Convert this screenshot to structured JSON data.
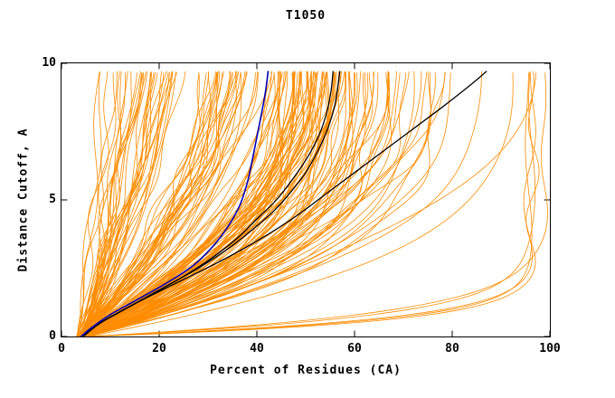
{
  "chart_data": {
    "type": "line",
    "title": "T1050",
    "xlabel": "Percent of Residues (CA)",
    "ylabel": "Distance Cutoff, A",
    "xlim": [
      0,
      100
    ],
    "ylim": [
      0,
      10
    ],
    "xticks": [
      0,
      20,
      40,
      60,
      80,
      100
    ],
    "yticks": [
      0,
      5,
      10
    ],
    "grid": false,
    "frame_color": "#000000",
    "ensemble": {
      "name": "server-model-curves",
      "color": "#ff8c00",
      "line_width": 0.8,
      "count": 175,
      "seed": 42,
      "x_start_range": [
        3,
        5.5
      ],
      "y_top": 9.7,
      "wiggle_amp": 1.6,
      "groups": [
        {
          "weight": 0.18,
          "xtop_mean": 20,
          "xtop_sd": 7,
          "q_range": [
            0.9,
            1.8
          ]
        },
        {
          "weight": 0.22,
          "xtop_mean": 38,
          "xtop_sd": 7,
          "q_range": [
            1.2,
            2.5
          ]
        },
        {
          "weight": 0.34,
          "xtop_mean": 52,
          "xtop_sd": 5,
          "q_range": [
            1.8,
            3.5
          ]
        },
        {
          "weight": 0.18,
          "xtop_mean": 66,
          "xtop_sd": 8,
          "q_range": [
            2.0,
            4.0
          ]
        },
        {
          "weight": 0.05,
          "xtop_mean": 82,
          "xtop_sd": 5,
          "q_range": [
            2.5,
            4.5
          ]
        },
        {
          "weight": 0.03,
          "xtop_mean": 96.5,
          "xtop_sd": 1.5,
          "q_range": [
            8,
            20
          ]
        }
      ]
    },
    "highlight_series": [
      {
        "name": "model-black-1",
        "color": "#000000",
        "width": 1.3,
        "points": [
          [
            4,
            0
          ],
          [
            7,
            0.4
          ],
          [
            12,
            0.9
          ],
          [
            18,
            1.5
          ],
          [
            25,
            2.2
          ],
          [
            31,
            2.9
          ],
          [
            36,
            3.6
          ],
          [
            40,
            4.3
          ],
          [
            44,
            5.0
          ],
          [
            47.5,
            5.8
          ],
          [
            50.5,
            6.6
          ],
          [
            52.8,
            7.4
          ],
          [
            54.3,
            8.2
          ],
          [
            55.2,
            9.0
          ],
          [
            55.6,
            9.7
          ]
        ]
      },
      {
        "name": "model-black-2",
        "color": "#000000",
        "width": 1.3,
        "points": [
          [
            4.5,
            0
          ],
          [
            8,
            0.5
          ],
          [
            14,
            1.1
          ],
          [
            21,
            1.8
          ],
          [
            28,
            2.5
          ],
          [
            34,
            3.2
          ],
          [
            39,
            3.9
          ],
          [
            43.5,
            4.6
          ],
          [
            47,
            5.3
          ],
          [
            50,
            6.0
          ],
          [
            52.5,
            6.8
          ],
          [
            54.5,
            7.6
          ],
          [
            56,
            8.5
          ],
          [
            57,
            9.7
          ]
        ]
      },
      {
        "name": "model-black-3",
        "color": "#000000",
        "width": 1.3,
        "points": [
          [
            4,
            0
          ],
          [
            8,
            0.5
          ],
          [
            15,
            1.2
          ],
          [
            24,
            2.0
          ],
          [
            33,
            2.8
          ],
          [
            41,
            3.6
          ],
          [
            48,
            4.4
          ],
          [
            54,
            5.2
          ],
          [
            60,
            6.0
          ],
          [
            66,
            6.8
          ],
          [
            72,
            7.6
          ],
          [
            78,
            8.4
          ],
          [
            83,
            9.1
          ],
          [
            87,
            9.7
          ]
        ]
      },
      {
        "name": "model-blue",
        "color": "#0000bb",
        "width": 1.6,
        "points": [
          [
            4,
            0
          ],
          [
            6,
            0.3
          ],
          [
            10,
            0.8
          ],
          [
            15,
            1.3
          ],
          [
            21,
            1.9
          ],
          [
            27,
            2.6
          ],
          [
            31,
            3.3
          ],
          [
            34,
            4.0
          ],
          [
            36.5,
            4.8
          ],
          [
            38,
            5.6
          ],
          [
            39,
            6.4
          ],
          [
            40,
            7.3
          ],
          [
            41,
            8.2
          ],
          [
            41.8,
            9.0
          ],
          [
            42.3,
            9.7
          ]
        ]
      }
    ]
  }
}
